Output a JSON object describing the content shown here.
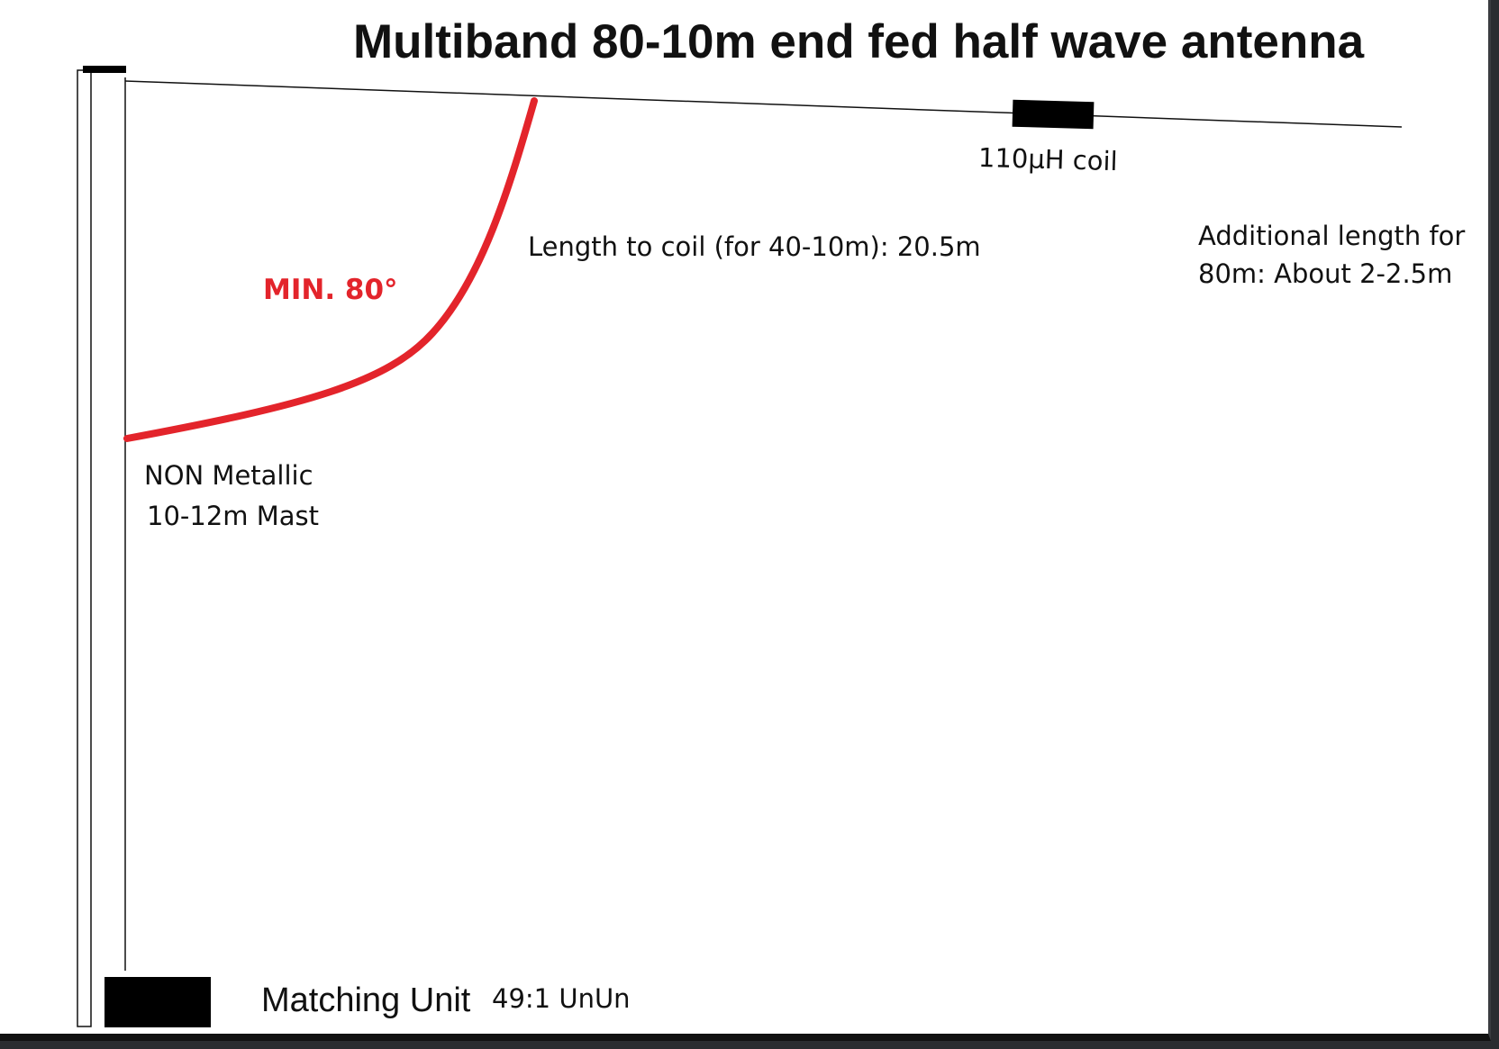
{
  "title": "Multiband 80-10m end fed half wave antenna",
  "coil": {
    "label": "110µH coil"
  },
  "length_to_coil": "Length to coil (for 40-10m): 20.5m",
  "additional_length": {
    "line1": "Additional length for",
    "line2": "80m: About 2-2.5m"
  },
  "angle_label": "MIN. 80°",
  "mast": {
    "line1": "NON Metallic",
    "line2": "10-12m Mast"
  },
  "matching_unit": {
    "title": "Matching Unit",
    "subtitle": "49:1 UnUn"
  },
  "colors": {
    "angle_arc": "#e3242b",
    "wire": "#111111",
    "blocks": "#000000"
  }
}
